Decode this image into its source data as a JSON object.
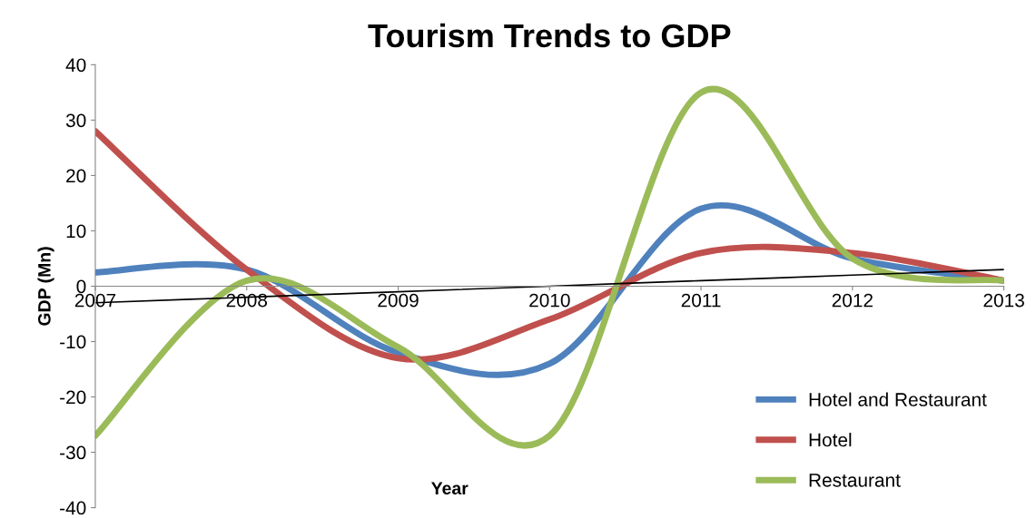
{
  "chart_data": {
    "type": "line",
    "title": "Tourism Trends to GDP",
    "xlabel": "Year",
    "ylabel": "GDP (Mn)",
    "categories": [
      "2007",
      "2008",
      "2009",
      "2010",
      "2011",
      "2012",
      "2013"
    ],
    "series": [
      {
        "name": "Hotel and Restaurant",
        "color": "#4f81bd",
        "values": [
          2.5,
          3,
          -12,
          -14,
          14,
          5,
          1
        ]
      },
      {
        "name": "Hotel",
        "color": "#c0504d",
        "values": [
          28,
          3,
          -13,
          -6,
          6,
          6,
          1
        ]
      },
      {
        "name": "Restaurant",
        "color": "#9bbb59",
        "values": [
          -27,
          1,
          -11,
          -27,
          35,
          5,
          1
        ]
      },
      {
        "type": "line",
        "color": "#000000",
        "values": [
          -3,
          -2,
          -1,
          0,
          1,
          2,
          3
        ]
      }
    ],
    "ylim": [
      -40,
      40
    ],
    "yticks": [
      -40,
      -30,
      -20,
      -10,
      0,
      10,
      20,
      30,
      40
    ],
    "grid": false,
    "legend": "bottom right",
    "marker": "none",
    "line_style": "solid"
  }
}
